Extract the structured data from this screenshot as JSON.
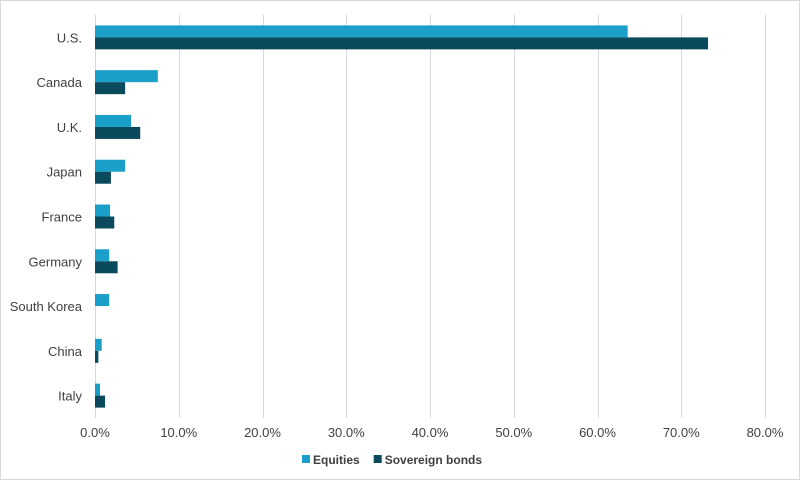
{
  "chart_data": {
    "type": "bar",
    "orientation": "horizontal",
    "categories": [
      "U.S.",
      "Canada",
      "U.K.",
      "Japan",
      "France",
      "Germany",
      "South Korea",
      "China",
      "Italy"
    ],
    "series": [
      {
        "name": "Equities",
        "color": "#1AA0C8",
        "values": [
          63.6,
          7.5,
          4.3,
          3.6,
          1.8,
          1.7,
          1.7,
          0.8,
          0.6
        ]
      },
      {
        "name": "Sovereign bonds",
        "color": "#0B4A5C",
        "values": [
          73.2,
          3.6,
          5.4,
          1.9,
          2.3,
          2.7,
          0.0,
          0.4,
          1.2
        ]
      }
    ],
    "xlim": [
      0,
      80
    ],
    "x_ticks": [
      0,
      10,
      20,
      30,
      40,
      50,
      60,
      70,
      80
    ],
    "x_tick_labels": [
      "0.0%",
      "10.0%",
      "20.0%",
      "30.0%",
      "40.0%",
      "50.0%",
      "60.0%",
      "70.0%",
      "80.0%"
    ],
    "grid": "vertical",
    "legend_position": "bottom",
    "title": "",
    "xlabel": "",
    "ylabel": ""
  }
}
